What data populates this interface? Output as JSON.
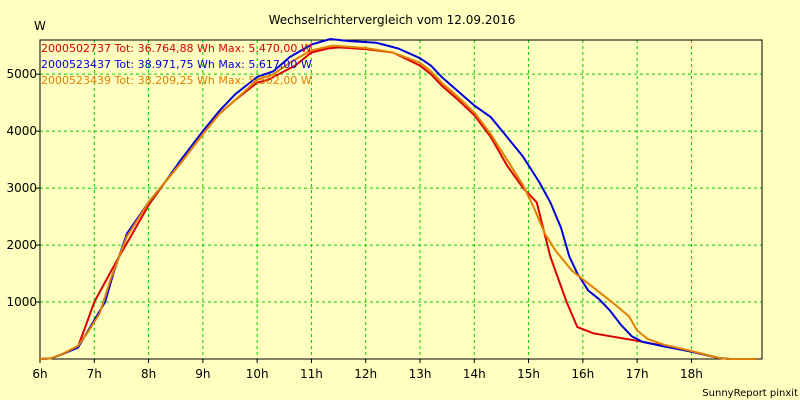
{
  "chart_data": {
    "type": "line",
    "title": "Wechselrichtervergleich vom 12.09.2016",
    "ylabel": "W",
    "xlabel": "",
    "credit": "SunnyReport pinxit",
    "xlim": [
      6,
      19.3
    ],
    "ylim": [
      0,
      5600
    ],
    "x_ticks": [
      {
        "value": 6,
        "label": "6h"
      },
      {
        "value": 7,
        "label": "7h"
      },
      {
        "value": 8,
        "label": "8h"
      },
      {
        "value": 9,
        "label": "9h"
      },
      {
        "value": 10,
        "label": "10h"
      },
      {
        "value": 11,
        "label": "11h"
      },
      {
        "value": 12,
        "label": "12h"
      },
      {
        "value": 13,
        "label": "13h"
      },
      {
        "value": 14,
        "label": "14h"
      },
      {
        "value": 15,
        "label": "15h"
      },
      {
        "value": 16,
        "label": "16h"
      },
      {
        "value": 17,
        "label": "17h"
      },
      {
        "value": 18,
        "label": "18h"
      }
    ],
    "y_ticks": [
      {
        "value": 1000,
        "label": "1000"
      },
      {
        "value": 2000,
        "label": "2000"
      },
      {
        "value": 3000,
        "label": "3000"
      },
      {
        "value": 4000,
        "label": "4000"
      },
      {
        "value": 5000,
        "label": "5000"
      }
    ],
    "grid": true,
    "colors": {
      "background": "#ffffc0",
      "grid": "#00cc00",
      "axis": "#000000"
    },
    "series": [
      {
        "name": "2000502737 Tot: 36.764,88 Wh Max: 5.470,00 W",
        "color": "#dd0000",
        "points": [
          [
            6.0,
            0
          ],
          [
            6.2,
            10
          ],
          [
            6.4,
            80
          ],
          [
            6.7,
            220
          ],
          [
            6.85,
            600
          ],
          [
            7.0,
            1000
          ],
          [
            7.2,
            1350
          ],
          [
            7.4,
            1700
          ],
          [
            7.7,
            2200
          ],
          [
            8.0,
            2700
          ],
          [
            8.3,
            3100
          ],
          [
            8.6,
            3450
          ],
          [
            9.0,
            3950
          ],
          [
            9.3,
            4300
          ],
          [
            9.6,
            4550
          ],
          [
            10.0,
            4850
          ],
          [
            10.2,
            4900
          ],
          [
            10.5,
            5050
          ],
          [
            10.7,
            5150
          ],
          [
            11.0,
            5380
          ],
          [
            11.3,
            5450
          ],
          [
            11.5,
            5470
          ],
          [
            12.0,
            5440
          ],
          [
            12.5,
            5380
          ],
          [
            13.0,
            5150
          ],
          [
            13.2,
            5000
          ],
          [
            13.4,
            4800
          ],
          [
            13.7,
            4550
          ],
          [
            14.0,
            4280
          ],
          [
            14.3,
            3900
          ],
          [
            14.6,
            3400
          ],
          [
            14.9,
            3000
          ],
          [
            15.15,
            2750
          ],
          [
            15.4,
            1800
          ],
          [
            15.7,
            1000
          ],
          [
            15.9,
            560
          ],
          [
            16.2,
            450
          ],
          [
            16.5,
            400
          ],
          [
            17.0,
            320
          ],
          [
            17.5,
            230
          ],
          [
            18.0,
            130
          ],
          [
            18.5,
            20
          ],
          [
            18.7,
            0
          ],
          [
            19.2,
            0
          ]
        ]
      },
      {
        "name": "2000523437 Tot: 38.971,75 Wh Max: 5.617,00 W",
        "color": "#0000dd",
        "points": [
          [
            6.0,
            0
          ],
          [
            6.2,
            10
          ],
          [
            6.4,
            80
          ],
          [
            6.7,
            200
          ],
          [
            6.95,
            600
          ],
          [
            7.2,
            1000
          ],
          [
            7.35,
            1500
          ],
          [
            7.6,
            2200
          ],
          [
            8.0,
            2750
          ],
          [
            8.3,
            3100
          ],
          [
            8.6,
            3500
          ],
          [
            9.0,
            4000
          ],
          [
            9.3,
            4350
          ],
          [
            9.6,
            4650
          ],
          [
            10.0,
            4950
          ],
          [
            10.3,
            5050
          ],
          [
            10.6,
            5300
          ],
          [
            11.0,
            5520
          ],
          [
            11.35,
            5617
          ],
          [
            11.7,
            5580
          ],
          [
            12.2,
            5550
          ],
          [
            12.6,
            5450
          ],
          [
            13.0,
            5280
          ],
          [
            13.2,
            5150
          ],
          [
            13.4,
            4950
          ],
          [
            13.7,
            4700
          ],
          [
            14.0,
            4450
          ],
          [
            14.3,
            4250
          ],
          [
            14.6,
            3900
          ],
          [
            14.9,
            3550
          ],
          [
            15.2,
            3100
          ],
          [
            15.4,
            2750
          ],
          [
            15.6,
            2300
          ],
          [
            15.75,
            1800
          ],
          [
            15.9,
            1500
          ],
          [
            16.1,
            1200
          ],
          [
            16.3,
            1050
          ],
          [
            16.5,
            850
          ],
          [
            16.7,
            600
          ],
          [
            16.9,
            400
          ],
          [
            17.1,
            300
          ],
          [
            17.5,
            220
          ],
          [
            18.0,
            130
          ],
          [
            18.5,
            20
          ],
          [
            18.7,
            0
          ],
          [
            19.2,
            0
          ]
        ]
      },
      {
        "name": "2000523439 Tot: 38.209,25 Wh Max: 5.502,00 W",
        "color": "#e08000",
        "points": [
          [
            6.0,
            0
          ],
          [
            6.2,
            10
          ],
          [
            6.4,
            80
          ],
          [
            6.7,
            230
          ],
          [
            6.9,
            500
          ],
          [
            7.1,
            800
          ],
          [
            7.3,
            1400
          ],
          [
            7.6,
            2150
          ],
          [
            8.0,
            2750
          ],
          [
            8.3,
            3100
          ],
          [
            8.6,
            3450
          ],
          [
            9.0,
            3950
          ],
          [
            9.3,
            4300
          ],
          [
            9.6,
            4550
          ],
          [
            10.0,
            4900
          ],
          [
            10.3,
            5000
          ],
          [
            10.6,
            5200
          ],
          [
            11.0,
            5420
          ],
          [
            11.4,
            5502
          ],
          [
            12.0,
            5460
          ],
          [
            12.5,
            5380
          ],
          [
            13.0,
            5200
          ],
          [
            13.2,
            5050
          ],
          [
            13.4,
            4850
          ],
          [
            13.7,
            4600
          ],
          [
            14.0,
            4330
          ],
          [
            14.3,
            3950
          ],
          [
            14.6,
            3500
          ],
          [
            14.9,
            3050
          ],
          [
            15.1,
            2650
          ],
          [
            15.3,
            2200
          ],
          [
            15.5,
            1900
          ],
          [
            15.8,
            1550
          ],
          [
            16.0,
            1400
          ],
          [
            16.2,
            1250
          ],
          [
            16.4,
            1100
          ],
          [
            16.6,
            950
          ],
          [
            16.85,
            750
          ],
          [
            17.0,
            500
          ],
          [
            17.2,
            350
          ],
          [
            17.5,
            250
          ],
          [
            18.0,
            140
          ],
          [
            18.5,
            20
          ],
          [
            18.7,
            0
          ],
          [
            19.2,
            0
          ]
        ]
      }
    ]
  }
}
